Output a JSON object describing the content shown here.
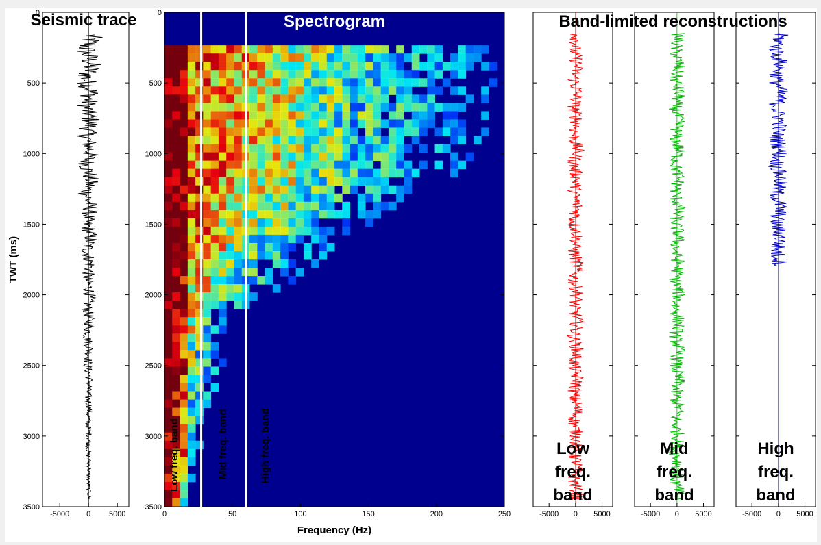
{
  "chart_data": [
    {
      "type": "line",
      "title": "Seismic trace",
      "ylabel": "TWT (ms)",
      "xlabel": "",
      "xlim": [
        -8000,
        7000
      ],
      "ylim": [
        0,
        3500
      ],
      "y_inverted": true,
      "x_ticks": [
        "-5000",
        "0",
        "5000"
      ],
      "y_ticks": [
        "0",
        "500",
        "1000",
        "1500",
        "2000",
        "2500",
        "3000",
        "3500"
      ],
      "series": [
        {
          "color": "#000000",
          "y_range": [
            160,
            3450
          ]
        }
      ]
    },
    {
      "type": "heatmap",
      "title": "Spectrogram",
      "xlabel": "Frequency (Hz)",
      "ylabel": "",
      "xlim": [
        0,
        250
      ],
      "ylim": [
        0,
        3500
      ],
      "y_inverted": true,
      "x_ticks": [
        "0",
        "50",
        "100",
        "150",
        "200",
        "250"
      ],
      "y_ticks": [
        "0",
        "500",
        "1000",
        "1500",
        "2000",
        "2500",
        "3000",
        "3500"
      ],
      "colormap": "jet",
      "band_dividers_hz": [
        27,
        60
      ],
      "divider_color": "#ffffff",
      "annotations": [
        "Low freq. band",
        "Mid freq. band",
        "High freq. band"
      ]
    },
    {
      "type": "line",
      "title": "Band-limited reconstructions",
      "panels": [
        {
          "label": [
            "Low",
            "freq.",
            "band"
          ],
          "color": "#ff0000"
        },
        {
          "label": [
            "Mid",
            "freq.",
            "band"
          ],
          "color": "#00bb00"
        },
        {
          "label": [
            "High",
            "freq.",
            "band"
          ],
          "color": "#0000cc"
        }
      ],
      "xlim": [
        -8000,
        7000
      ],
      "ylim": [
        0,
        3500
      ],
      "y_inverted": true,
      "x_ticks": [
        "-5000",
        "0",
        "5000"
      ]
    }
  ]
}
